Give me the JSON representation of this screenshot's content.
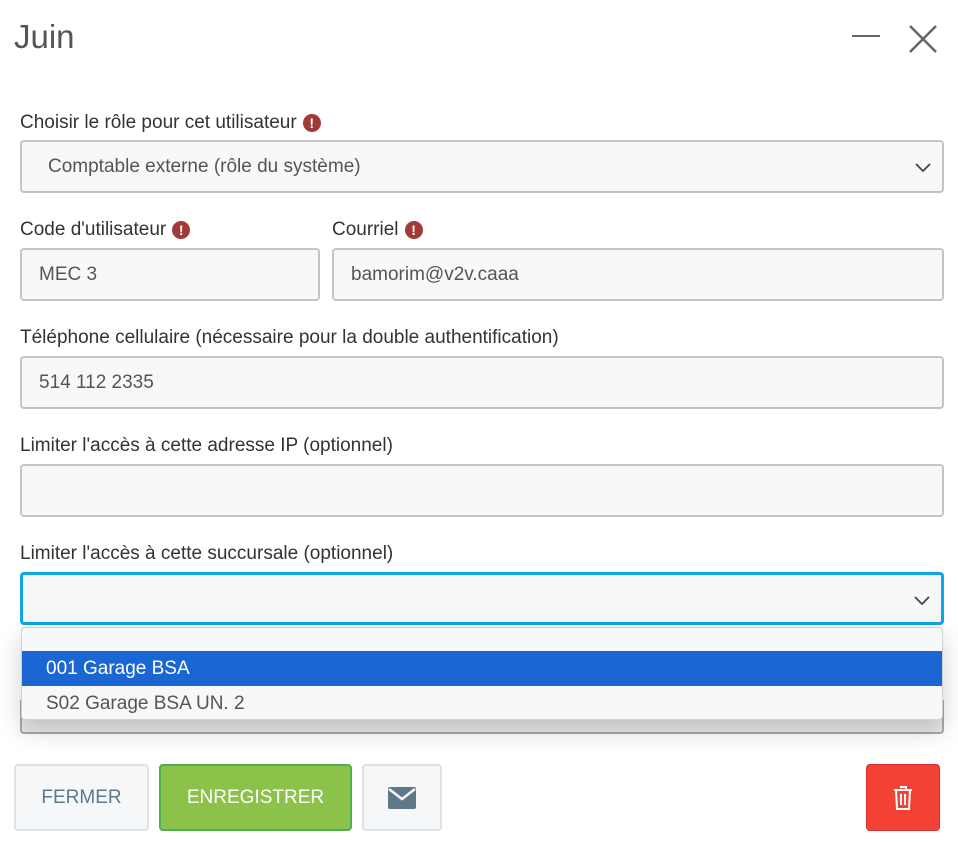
{
  "window": {
    "title": "Juin"
  },
  "form": {
    "role_label": "Choisir le rôle pour cet utilisateur",
    "role_value": "Comptable externe (rôle du système)",
    "code_label": "Code d'utilisateur",
    "code_value": "MEC 3",
    "email_label": "Courriel",
    "email_value": "bamorim@v2v.caaa",
    "phone_label": "Téléphone cellulaire (nécessaire pour la double authentification)",
    "phone_value": "514 112 2335",
    "ip_label": "Limiter l'accès à cette adresse IP (optionnel)",
    "ip_value": "",
    "branch_label": "Limiter l'accès à cette succursale (optionnel)",
    "branch_value": "",
    "branch_options": [
      "",
      "001 Garage BSA",
      "S02 Garage BSA UN. 2"
    ]
  },
  "buttons": {
    "close": "FERMER",
    "save": "ENREGISTRER"
  },
  "colors": {
    "accent": "#1a66d3",
    "focus": "#0ea5e9",
    "save": "#8bc34a",
    "delete": "#f44336",
    "required": "#a33a3a"
  }
}
